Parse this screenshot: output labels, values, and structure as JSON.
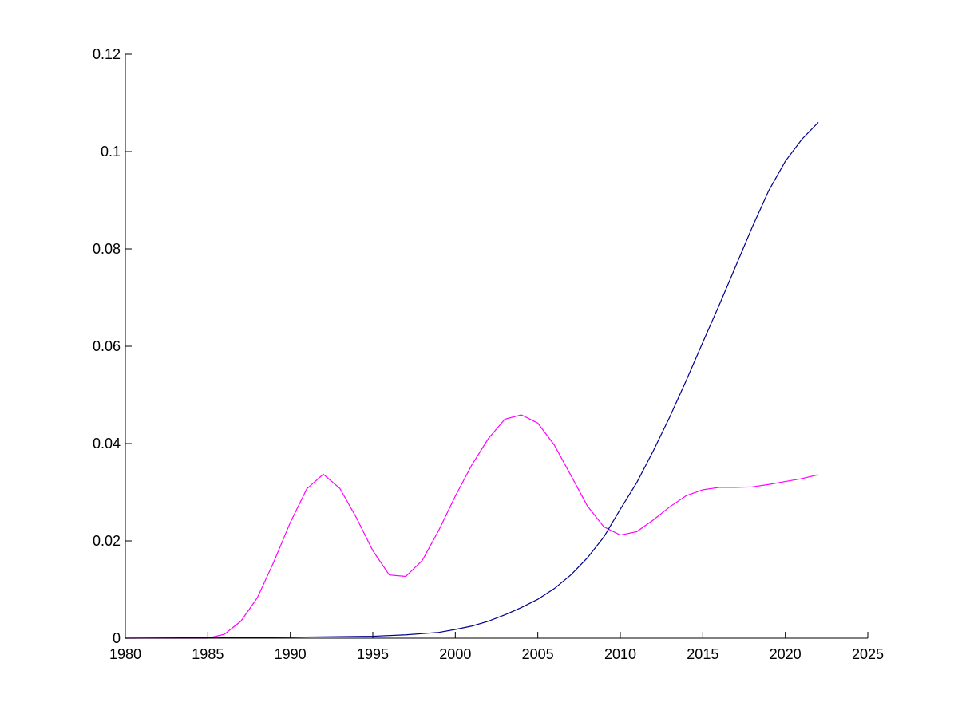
{
  "chart_data": {
    "type": "line",
    "title": "",
    "xlabel": "",
    "ylabel": "",
    "xlim": [
      1980,
      2025
    ],
    "ylim": [
      0,
      0.12
    ],
    "xticks": [
      1980,
      1985,
      1990,
      1995,
      2000,
      2005,
      2010,
      2015,
      2020,
      2025
    ],
    "yticks": [
      0,
      0.02,
      0.04,
      0.06,
      0.08,
      0.1,
      0.12
    ],
    "xtick_labels": [
      "1980",
      "1985",
      "1990",
      "1995",
      "2000",
      "2005",
      "2010",
      "2015",
      "2020",
      "2025"
    ],
    "ytick_labels": [
      "0",
      "0.02",
      "0.04",
      "0.06",
      "0.08",
      "0.1",
      "0.12"
    ],
    "grid": false,
    "legend": "none",
    "series": [
      {
        "color": "#ff00ff",
        "x": [
          1980,
          1981,
          1982,
          1983,
          1984,
          1985,
          1986,
          1987,
          1988,
          1989,
          1990,
          1991,
          1992,
          1993,
          1994,
          1995,
          1996,
          1997,
          1998,
          1999,
          2000,
          2001,
          2002,
          2003,
          2004,
          2005,
          2006,
          2007,
          2008,
          2009,
          2010,
          2011,
          2012,
          2013,
          2014,
          2015,
          2016,
          2017,
          2018,
          2019,
          2020,
          2021,
          2022
        ],
        "y": [
          0,
          0,
          0,
          0,
          0,
          0,
          0.0008,
          0.0035,
          0.0083,
          0.0157,
          0.0238,
          0.0307,
          0.0337,
          0.0308,
          0.0248,
          0.018,
          0.013,
          0.0127,
          0.016,
          0.0222,
          0.0292,
          0.0356,
          0.041,
          0.045,
          0.0459,
          0.0442,
          0.0397,
          0.0335,
          0.0272,
          0.0229,
          0.0212,
          0.0219,
          0.0243,
          0.027,
          0.0293,
          0.0305,
          0.031,
          0.031,
          0.0311,
          0.0316,
          0.0322,
          0.0328,
          0.0336
        ]
      },
      {
        "color": "#00008b",
        "x": [
          1980,
          1985,
          1990,
          1995,
          1997,
          1999,
          2000,
          2001,
          2002,
          2003,
          2004,
          2005,
          2006,
          2007,
          2008,
          2009,
          2010,
          2011,
          2012,
          2013,
          2014,
          2015,
          2016,
          2017,
          2018,
          2019,
          2020,
          2021,
          2022
        ],
        "y": [
          0,
          0.0001,
          0.0002,
          0.0004,
          0.0007,
          0.0012,
          0.0018,
          0.0025,
          0.0035,
          0.0048,
          0.0063,
          0.008,
          0.0102,
          0.013,
          0.0165,
          0.0208,
          0.0265,
          0.032,
          0.0385,
          0.0455,
          0.053,
          0.0608,
          0.0685,
          0.0765,
          0.0845,
          0.092,
          0.098,
          0.1025,
          0.106
        ]
      }
    ]
  }
}
